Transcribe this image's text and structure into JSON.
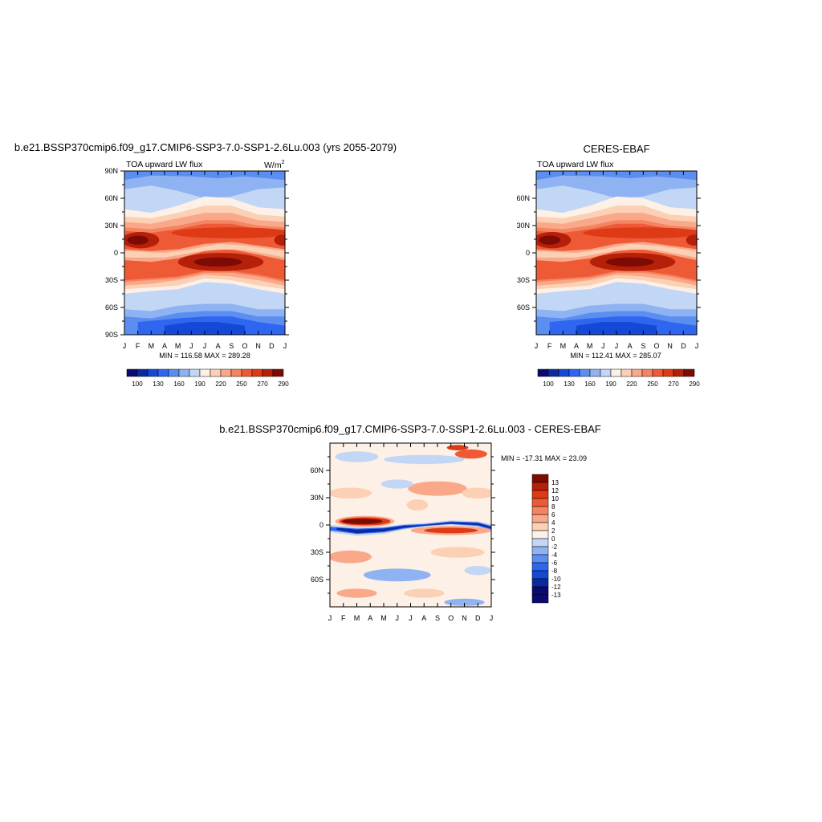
{
  "chart_data": [
    {
      "type": "heatmap",
      "title": "b.e21.BSSP370cmip6.f09_g17.CMIP6-SSP3-7.0-SSP1-2.6Lu.003 (yrs 2055-2079)",
      "left_string": "TOA upward LW flux",
      "units_base": "W/m",
      "units_exp": "2",
      "stats": "MIN = 116.58 MAX = 289.28",
      "min": 116.58,
      "max": 289.28,
      "x_ticks": [
        "J",
        "F",
        "M",
        "A",
        "M",
        "J",
        "J",
        "A",
        "S",
        "O",
        "N",
        "D",
        "J"
      ],
      "y_ticks": [
        {
          "label": "90N",
          "lat": 90
        },
        {
          "label": "60N",
          "lat": 60
        },
        {
          "label": "30N",
          "lat": 30
        },
        {
          "label": "0",
          "lat": 0
        },
        {
          "label": "30S",
          "lat": -30
        },
        {
          "label": "60S",
          "lat": -60
        },
        {
          "label": "90S",
          "lat": -90
        }
      ],
      "colorbar": {
        "orientation": "horizontal",
        "levels": [
          100,
          115,
          130,
          145,
          160,
          175,
          190,
          205,
          220,
          235,
          250,
          265,
          270,
          280,
          290
        ],
        "labels": [
          "100",
          "130",
          "160",
          "190",
          "220",
          "250",
          "270",
          "290"
        ],
        "colors": [
          "#0a0a70",
          "#0b2a9e",
          "#1448d6",
          "#2f66f0",
          "#5b8ef0",
          "#8fb3f2",
          "#c2d7f5",
          "#fdf0e6",
          "#fcd0b4",
          "#f9a98a",
          "#f58462",
          "#ef5a36",
          "#de3a16",
          "#b52008",
          "#7d0a03"
        ]
      }
    },
    {
      "type": "heatmap",
      "title": "CERES-EBAF",
      "left_string": "TOA upward LW flux",
      "stats": "MIN = 112.41 MAX = 285.07",
      "min": 112.41,
      "max": 285.07,
      "x_ticks": [
        "J",
        "F",
        "M",
        "A",
        "M",
        "J",
        "J",
        "A",
        "S",
        "O",
        "N",
        "D",
        "J"
      ],
      "y_ticks": [
        {
          "label": "60N",
          "lat": 60
        },
        {
          "label": "30N",
          "lat": 30
        },
        {
          "label": "0",
          "lat": 0
        },
        {
          "label": "30S",
          "lat": -30
        },
        {
          "label": "60S",
          "lat": -60
        }
      ],
      "colorbar": {
        "orientation": "horizontal",
        "levels": [
          100,
          115,
          130,
          145,
          160,
          175,
          190,
          205,
          220,
          235,
          250,
          265,
          270,
          280,
          290
        ],
        "labels": [
          "100",
          "130",
          "160",
          "190",
          "220",
          "250",
          "270",
          "290"
        ],
        "colors": [
          "#0a0a70",
          "#0b2a9e",
          "#1448d6",
          "#2f66f0",
          "#5b8ef0",
          "#8fb3f2",
          "#c2d7f5",
          "#fdf0e6",
          "#fcd0b4",
          "#f9a98a",
          "#f58462",
          "#ef5a36",
          "#de3a16",
          "#b52008",
          "#7d0a03"
        ]
      }
    },
    {
      "type": "heatmap",
      "title": "b.e21.BSSP370cmip6.f09_g17.CMIP6-SSP3-7.0-SSP1-2.6Lu.003 - CERES-EBAF",
      "stats": "MIN = -17.31 MAX =  23.09",
      "min": -17.31,
      "max": 23.09,
      "x_ticks": [
        "J",
        "F",
        "M",
        "A",
        "M",
        "J",
        "J",
        "A",
        "S",
        "O",
        "N",
        "D",
        "J"
      ],
      "y_ticks": [
        {
          "label": "60N",
          "lat": 60
        },
        {
          "label": "30N",
          "lat": 30
        },
        {
          "label": "0",
          "lat": 0
        },
        {
          "label": "30S",
          "lat": -30
        },
        {
          "label": "60S",
          "lat": -60
        }
      ],
      "colorbar": {
        "orientation": "vertical",
        "labels": [
          "13",
          "12",
          "10",
          "8",
          "6",
          "4",
          "2",
          "0",
          "-2",
          "-4",
          "-6",
          "-8",
          "-10",
          "-12",
          "-13"
        ],
        "colors": [
          "#7d0a03",
          "#b52008",
          "#de3a16",
          "#ef5a36",
          "#f58462",
          "#f9a98a",
          "#fcd0b4",
          "#fdf0e6",
          "#c2d7f5",
          "#8fb3f2",
          "#5b8ef0",
          "#2f66f0",
          "#1448d6",
          "#0b2a9e",
          "#0a0a70",
          "#0a0a70"
        ]
      }
    }
  ]
}
